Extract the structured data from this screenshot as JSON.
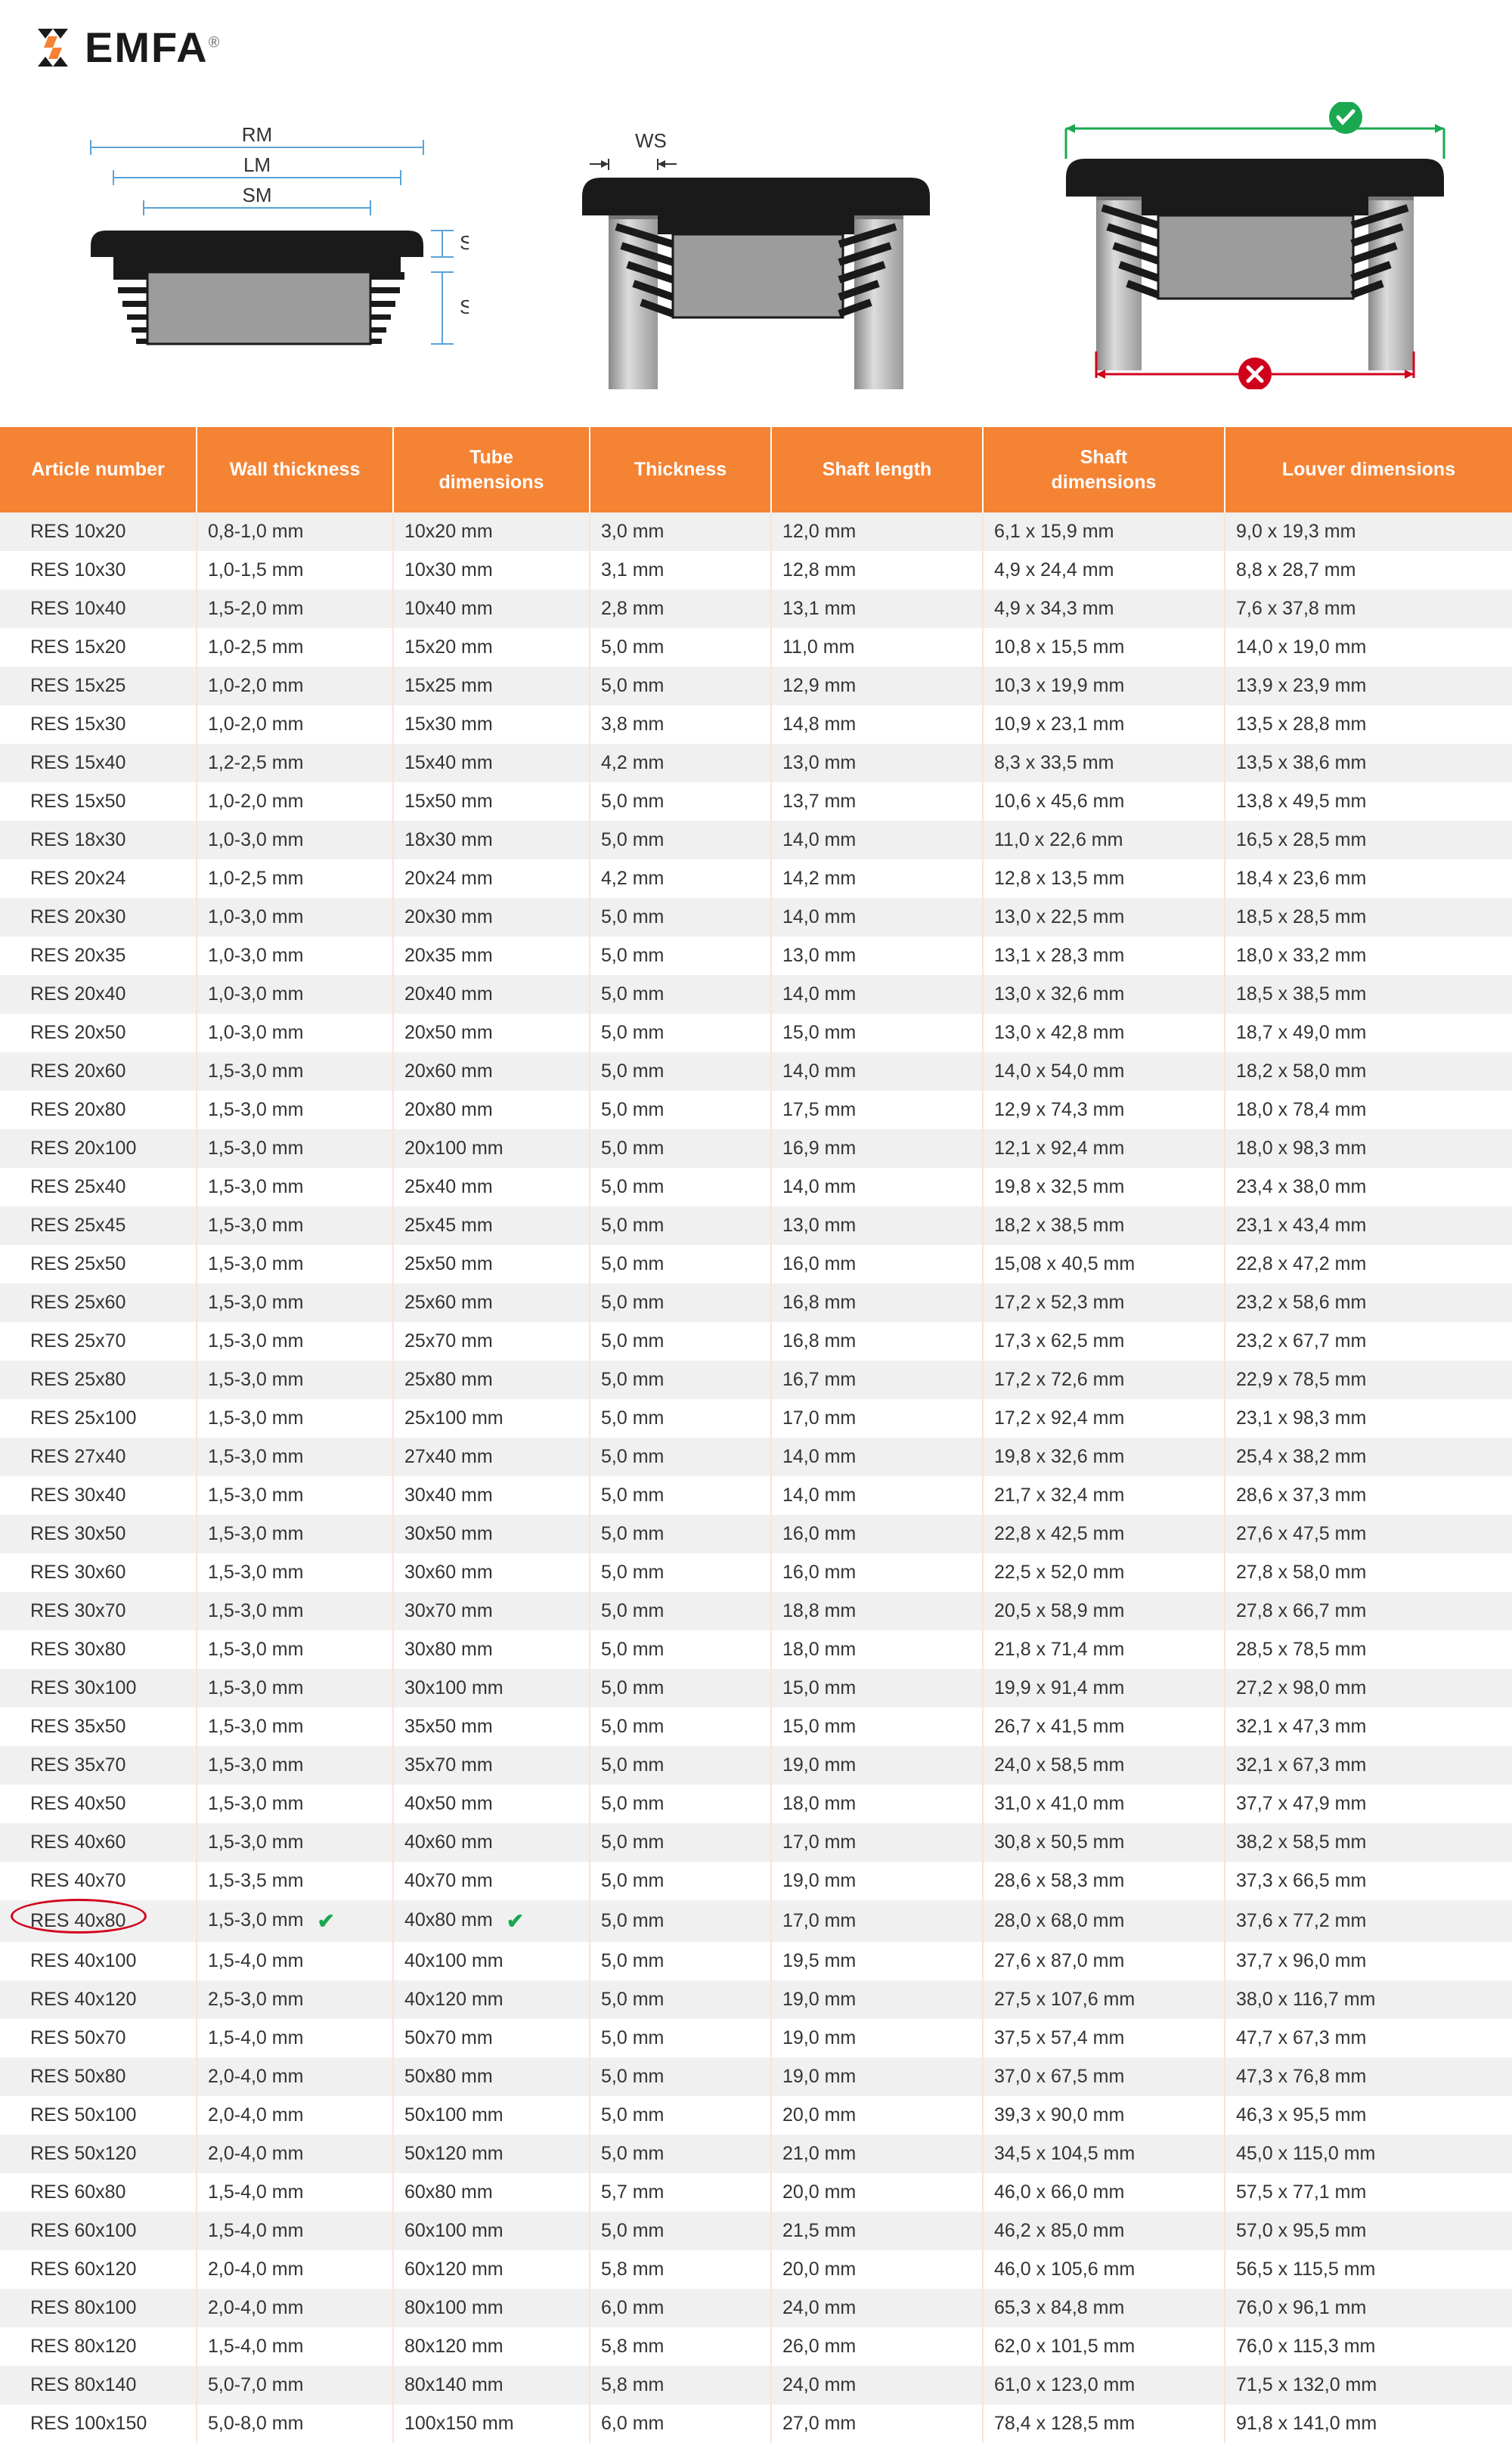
{
  "logo": {
    "text": "EMFA",
    "registered": "®"
  },
  "diagrams": {
    "labels": {
      "rm": "RM",
      "lm": "LM",
      "sm": "SM",
      "sk": "SK",
      "se": "SE",
      "ws": "WS"
    },
    "colors": {
      "measure_line": "#5aa3d8",
      "measure_text": "#333333",
      "plug_body": "#1a1a1a",
      "plug_inner": "#9c9c9c",
      "tube": "#b0b0b0",
      "tube_dark": "#888888",
      "correct_green": "#1aa850",
      "wrong_red": "#d0021b"
    }
  },
  "table": {
    "header_bg": "#f58334",
    "header_fg": "#ffffff",
    "row_odd_bg": "#f0f0f0",
    "row_even_bg": "#ffffff",
    "cell_separator": "#f9e4d4",
    "highlight_color": "#d0021b",
    "check_color": "#1aa850",
    "columns": [
      "Article number",
      "Wall thickness",
      "Tube dimensions",
      "Thickness",
      "Shaft length",
      "Shaft dimensions",
      "Louver dimensions"
    ],
    "highlighted_article": "RES 40x80",
    "rows": [
      {
        "a": "RES 10x20",
        "w": "0,8-1,0 mm",
        "t": "10x20 mm",
        "th": "3,0 mm",
        "sl": "12,0 mm",
        "sd": "6,1 x 15,9 mm",
        "ld": "9,0 x 19,3 mm"
      },
      {
        "a": "RES 10x30",
        "w": "1,0-1,5 mm",
        "t": "10x30 mm",
        "th": "3,1 mm",
        "sl": "12,8 mm",
        "sd": "4,9 x 24,4 mm",
        "ld": "8,8 x 28,7 mm"
      },
      {
        "a": "RES 10x40",
        "w": "1,5-2,0 mm",
        "t": "10x40 mm",
        "th": "2,8 mm",
        "sl": "13,1 mm",
        "sd": "4,9 x 34,3 mm",
        "ld": "7,6 x 37,8 mm"
      },
      {
        "a": "RES 15x20",
        "w": "1,0-2,5 mm",
        "t": "15x20 mm",
        "th": "5,0 mm",
        "sl": "11,0 mm",
        "sd": "10,8 x 15,5 mm",
        "ld": "14,0 x 19,0 mm"
      },
      {
        "a": "RES 15x25",
        "w": "1,0-2,0 mm",
        "t": "15x25 mm",
        "th": "5,0 mm",
        "sl": "12,9 mm",
        "sd": "10,3 x 19,9 mm",
        "ld": "13,9 x 23,9 mm"
      },
      {
        "a": "RES 15x30",
        "w": "1,0-2,0 mm",
        "t": "15x30 mm",
        "th": "3,8 mm",
        "sl": "14,8 mm",
        "sd": "10,9 x 23,1 mm",
        "ld": "13,5 x 28,8 mm"
      },
      {
        "a": "RES 15x40",
        "w": "1,2-2,5 mm",
        "t": "15x40 mm",
        "th": "4,2 mm",
        "sl": "13,0 mm",
        "sd": "8,3 x 33,5 mm",
        "ld": "13,5 x 38,6 mm"
      },
      {
        "a": "RES 15x50",
        "w": "1,0-2,0 mm",
        "t": "15x50 mm",
        "th": "5,0 mm",
        "sl": "13,7 mm",
        "sd": "10,6 x 45,6 mm",
        "ld": "13,8 x 49,5 mm"
      },
      {
        "a": "RES 18x30",
        "w": "1,0-3,0 mm",
        "t": "18x30 mm",
        "th": "5,0 mm",
        "sl": "14,0 mm",
        "sd": "11,0 x 22,6 mm",
        "ld": "16,5 x 28,5 mm"
      },
      {
        "a": "RES 20x24",
        "w": "1,0-2,5 mm",
        "t": "20x24 mm",
        "th": "4,2 mm",
        "sl": "14,2 mm",
        "sd": "12,8 x 13,5 mm",
        "ld": "18,4 x 23,6 mm"
      },
      {
        "a": "RES 20x30",
        "w": "1,0-3,0 mm",
        "t": "20x30 mm",
        "th": "5,0 mm",
        "sl": "14,0 mm",
        "sd": "13,0 x 22,5 mm",
        "ld": "18,5 x 28,5 mm"
      },
      {
        "a": "RES 20x35",
        "w": "1,0-3,0 mm",
        "t": "20x35 mm",
        "th": "5,0 mm",
        "sl": "13,0 mm",
        "sd": "13,1 x 28,3 mm",
        "ld": "18,0 x 33,2 mm"
      },
      {
        "a": "RES 20x40",
        "w": "1,0-3,0 mm",
        "t": "20x40 mm",
        "th": "5,0 mm",
        "sl": "14,0 mm",
        "sd": "13,0 x 32,6 mm",
        "ld": "18,5 x 38,5 mm"
      },
      {
        "a": "RES 20x50",
        "w": "1,0-3,0 mm",
        "t": "20x50 mm",
        "th": "5,0 mm",
        "sl": "15,0 mm",
        "sd": "13,0 x 42,8 mm",
        "ld": "18,7 x 49,0 mm"
      },
      {
        "a": "RES 20x60",
        "w": "1,5-3,0 mm",
        "t": "20x60 mm",
        "th": "5,0 mm",
        "sl": "14,0 mm",
        "sd": "14,0 x 54,0 mm",
        "ld": "18,2 x 58,0 mm"
      },
      {
        "a": "RES 20x80",
        "w": "1,5-3,0 mm",
        "t": "20x80 mm",
        "th": "5,0 mm",
        "sl": "17,5 mm",
        "sd": "12,9 x 74,3 mm",
        "ld": "18,0 x 78,4 mm"
      },
      {
        "a": "RES 20x100",
        "w": "1,5-3,0 mm",
        "t": "20x100 mm",
        "th": "5,0 mm",
        "sl": "16,9 mm",
        "sd": "12,1 x 92,4 mm",
        "ld": "18,0 x 98,3 mm"
      },
      {
        "a": "RES 25x40",
        "w": "1,5-3,0 mm",
        "t": "25x40 mm",
        "th": "5,0 mm",
        "sl": "14,0 mm",
        "sd": "19,8 x 32,5 mm",
        "ld": "23,4 x 38,0 mm"
      },
      {
        "a": "RES 25x45",
        "w": "1,5-3,0 mm",
        "t": "25x45 mm",
        "th": "5,0 mm",
        "sl": "13,0 mm",
        "sd": "18,2 x 38,5 mm",
        "ld": "23,1 x 43,4 mm"
      },
      {
        "a": "RES 25x50",
        "w": "1,5-3,0 mm",
        "t": "25x50 mm",
        "th": "5,0 mm",
        "sl": "16,0 mm",
        "sd": "15,08 x 40,5 mm",
        "ld": "22,8 x 47,2 mm"
      },
      {
        "a": "RES 25x60",
        "w": "1,5-3,0 mm",
        "t": "25x60 mm",
        "th": "5,0 mm",
        "sl": "16,8 mm",
        "sd": "17,2 x 52,3 mm",
        "ld": "23,2 x 58,6 mm"
      },
      {
        "a": "RES 25x70",
        "w": "1,5-3,0 mm",
        "t": "25x70 mm",
        "th": "5,0 mm",
        "sl": "16,8 mm",
        "sd": "17,3 x 62,5 mm",
        "ld": "23,2 x 67,7 mm"
      },
      {
        "a": "RES 25x80",
        "w": "1,5-3,0 mm",
        "t": "25x80 mm",
        "th": "5,0 mm",
        "sl": "16,7 mm",
        "sd": "17,2 x 72,6 mm",
        "ld": "22,9 x 78,5 mm"
      },
      {
        "a": "RES 25x100",
        "w": "1,5-3,0 mm",
        "t": "25x100 mm",
        "th": "5,0 mm",
        "sl": "17,0 mm",
        "sd": "17,2 x 92,4 mm",
        "ld": "23,1 x 98,3 mm"
      },
      {
        "a": "RES 27x40",
        "w": "1,5-3,0 mm",
        "t": "27x40 mm",
        "th": "5,0 mm",
        "sl": "14,0 mm",
        "sd": "19,8 x 32,6 mm",
        "ld": "25,4 x 38,2 mm"
      },
      {
        "a": "RES 30x40",
        "w": "1,5-3,0 mm",
        "t": "30x40 mm",
        "th": "5,0 mm",
        "sl": "14,0 mm",
        "sd": "21,7 x 32,4 mm",
        "ld": "28,6 x 37,3 mm"
      },
      {
        "a": "RES 30x50",
        "w": "1,5-3,0 mm",
        "t": "30x50 mm",
        "th": "5,0 mm",
        "sl": "16,0 mm",
        "sd": "22,8 x 42,5 mm",
        "ld": "27,6 x 47,5 mm"
      },
      {
        "a": "RES 30x60",
        "w": "1,5-3,0 mm",
        "t": "30x60 mm",
        "th": "5,0 mm",
        "sl": "16,0 mm",
        "sd": "22,5 x 52,0 mm",
        "ld": "27,8 x 58,0 mm"
      },
      {
        "a": "RES 30x70",
        "w": "1,5-3,0 mm",
        "t": "30x70 mm",
        "th": "5,0 mm",
        "sl": "18,8 mm",
        "sd": "20,5 x 58,9 mm",
        "ld": "27,8 x 66,7 mm"
      },
      {
        "a": "RES 30x80",
        "w": "1,5-3,0 mm",
        "t": "30x80 mm",
        "th": "5,0 mm",
        "sl": "18,0 mm",
        "sd": "21,8 x 71,4 mm",
        "ld": "28,5 x 78,5 mm"
      },
      {
        "a": "RES 30x100",
        "w": "1,5-3,0 mm",
        "t": "30x100 mm",
        "th": "5,0 mm",
        "sl": "15,0 mm",
        "sd": "19,9 x 91,4 mm",
        "ld": "27,2 x 98,0 mm"
      },
      {
        "a": "RES 35x50",
        "w": "1,5-3,0 mm",
        "t": "35x50 mm",
        "th": "5,0 mm",
        "sl": "15,0 mm",
        "sd": "26,7 x 41,5 mm",
        "ld": "32,1 x 47,3 mm"
      },
      {
        "a": "RES 35x70",
        "w": "1,5-3,0 mm",
        "t": "35x70 mm",
        "th": "5,0 mm",
        "sl": "19,0 mm",
        "sd": "24,0 x 58,5 mm",
        "ld": "32,1 x 67,3 mm"
      },
      {
        "a": "RES 40x50",
        "w": "1,5-3,0 mm",
        "t": "40x50 mm",
        "th": "5,0 mm",
        "sl": "18,0 mm",
        "sd": "31,0 x 41,0 mm",
        "ld": "37,7 x 47,9 mm"
      },
      {
        "a": "RES 40x60",
        "w": "1,5-3,0 mm",
        "t": "40x60 mm",
        "th": "5,0 mm",
        "sl": "17,0 mm",
        "sd": "30,8 x 50,5 mm",
        "ld": "38,2 x 58,5 mm"
      },
      {
        "a": "RES 40x70",
        "w": "1,5-3,5 mm",
        "t": "40x70 mm",
        "th": "5,0 mm",
        "sl": "19,0 mm",
        "sd": "28,6 x 58,3 mm",
        "ld": "37,3 x 66,5 mm"
      },
      {
        "a": "RES 40x80",
        "w": "1,5-3,0 mm",
        "t": "40x80 mm",
        "th": "5,0 mm",
        "sl": "17,0 mm",
        "sd": "28,0 x 68,0 mm",
        "ld": "37,6 x 77,2 mm",
        "highlight": true,
        "check": true
      },
      {
        "a": "RES 40x100",
        "w": "1,5-4,0 mm",
        "t": "40x100 mm",
        "th": "5,0 mm",
        "sl": "19,5 mm",
        "sd": "27,6 x 87,0 mm",
        "ld": "37,7 x 96,0 mm"
      },
      {
        "a": "RES 40x120",
        "w": "2,5-3,0 mm",
        "t": "40x120 mm",
        "th": "5,0 mm",
        "sl": "19,0 mm",
        "sd": "27,5 x 107,6 mm",
        "ld": "38,0 x 116,7 mm"
      },
      {
        "a": "RES 50x70",
        "w": "1,5-4,0 mm",
        "t": "50x70 mm",
        "th": "5,0 mm",
        "sl": "19,0 mm",
        "sd": "37,5 x 57,4 mm",
        "ld": "47,7 x 67,3 mm"
      },
      {
        "a": "RES 50x80",
        "w": "2,0-4,0 mm",
        "t": "50x80 mm",
        "th": "5,0 mm",
        "sl": "19,0 mm",
        "sd": "37,0 x 67,5 mm",
        "ld": "47,3 x 76,8 mm"
      },
      {
        "a": "RES 50x100",
        "w": "2,0-4,0 mm",
        "t": "50x100 mm",
        "th": "5,0 mm",
        "sl": "20,0 mm",
        "sd": "39,3 x 90,0 mm",
        "ld": "46,3 x 95,5 mm"
      },
      {
        "a": "RES 50x120",
        "w": "2,0-4,0 mm",
        "t": "50x120 mm",
        "th": "5,0 mm",
        "sl": "21,0 mm",
        "sd": "34,5 x 104,5 mm",
        "ld": "45,0 x 115,0 mm"
      },
      {
        "a": "RES 60x80",
        "w": "1,5-4,0 mm",
        "t": "60x80 mm",
        "th": "5,7 mm",
        "sl": "20,0 mm",
        "sd": "46,0 x 66,0 mm",
        "ld": "57,5 x 77,1 mm"
      },
      {
        "a": "RES 60x100",
        "w": "1,5-4,0 mm",
        "t": "60x100 mm",
        "th": "5,0 mm",
        "sl": "21,5 mm",
        "sd": "46,2 x 85,0 mm",
        "ld": "57,0 x 95,5 mm"
      },
      {
        "a": "RES 60x120",
        "w": "2,0-4,0 mm",
        "t": "60x120 mm",
        "th": "5,8 mm",
        "sl": "20,0 mm",
        "sd": "46,0 x 105,6 mm",
        "ld": "56,5 x 115,5 mm"
      },
      {
        "a": "RES 80x100",
        "w": "2,0-4,0 mm",
        "t": "80x100 mm",
        "th": "6,0 mm",
        "sl": "24,0 mm",
        "sd": "65,3 x 84,8 mm",
        "ld": "76,0 x 96,1 mm"
      },
      {
        "a": "RES 80x120",
        "w": "1,5-4,0 mm",
        "t": "80x120 mm",
        "th": "5,8 mm",
        "sl": "26,0 mm",
        "sd": "62,0 x 101,5 mm",
        "ld": "76,0 x 115,3 mm"
      },
      {
        "a": "RES 80x140",
        "w": "5,0-7,0 mm",
        "t": "80x140 mm",
        "th": "5,8 mm",
        "sl": "24,0 mm",
        "sd": "61,0 x 123,0 mm",
        "ld": "71,5 x 132,0 mm"
      },
      {
        "a": "RES 100x150",
        "w": "5,0-8,0 mm",
        "t": "100x150 mm",
        "th": "6,0 mm",
        "sl": "27,0 mm",
        "sd": "78,4 x 128,5 mm",
        "ld": "91,8 x 141,0 mm"
      }
    ]
  }
}
